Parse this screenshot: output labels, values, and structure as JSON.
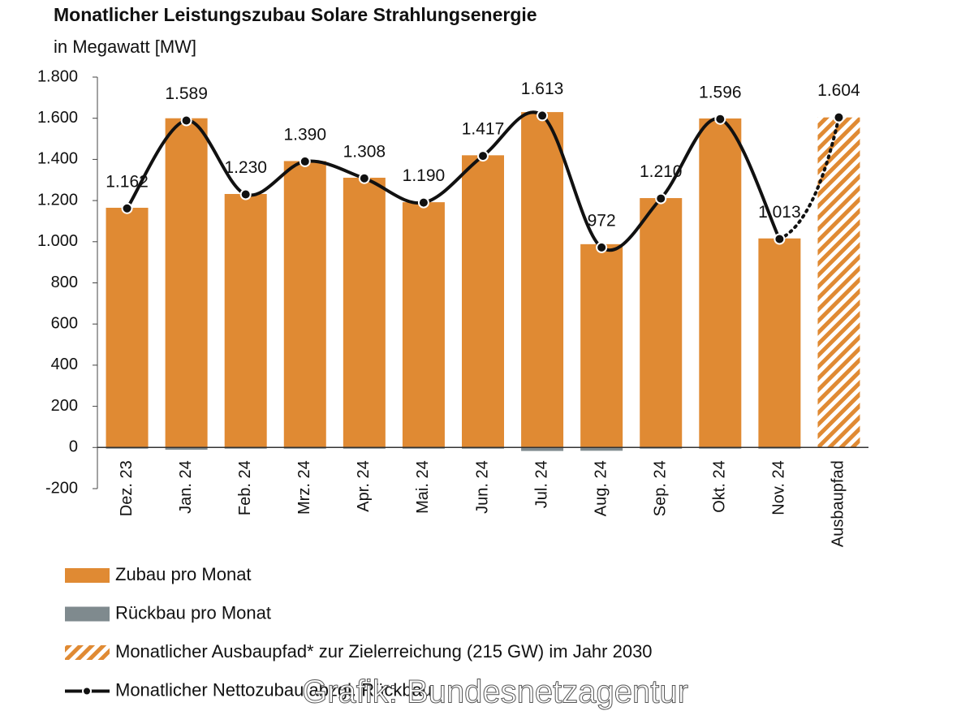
{
  "chart_data": {
    "type": "bar",
    "title": "Monatlicher Leistungszubau Solare Strahlungsenergie",
    "subtitle": "in Megawatt [MW]",
    "note": "Grafik: Bundesnetzagentur",
    "categories": [
      "Dez. 23",
      "Jan. 24",
      "Feb. 24",
      "Mrz. 24",
      "Apr. 24",
      "Mai. 24",
      "Jun. 24",
      "Jul. 24",
      "Aug. 24",
      "Sep. 24",
      "Okt. 24",
      "Nov. 24",
      "Ausbaupfad"
    ],
    "series": [
      {
        "name": "Zubau pro Monat",
        "kind": "bar",
        "color": "#e08a33",
        "values": [
          1165,
          1600,
          1232,
          1392,
          1311,
          1192,
          1420,
          1630,
          988,
          1212,
          1599,
          1016,
          null
        ]
      },
      {
        "name": "Rückbau pro Monat",
        "kind": "bar",
        "color": "#7f8a8e",
        "values": [
          -3,
          -11,
          -2,
          -2,
          -3,
          -2,
          -3,
          -17,
          -16,
          -2,
          -3,
          -3,
          null
        ]
      },
      {
        "name": "Monatlicher Ausbaupfad* zur Zielerreichung (215 GW) im Jahr 2030",
        "kind": "hatched-bar",
        "color": "#e08a33",
        "values": [
          null,
          null,
          null,
          null,
          null,
          null,
          null,
          null,
          null,
          null,
          null,
          null,
          1604
        ],
        "value_labels": [
          null,
          null,
          null,
          null,
          null,
          null,
          null,
          null,
          null,
          null,
          null,
          null,
          "1.604"
        ]
      },
      {
        "name": "Monatlicher Nettozubau abzgl. Rückbau",
        "kind": "line",
        "color": "#111111",
        "values": [
          1162,
          1589,
          1230,
          1390,
          1308,
          1190,
          1417,
          1613,
          972,
          1210,
          1596,
          1013,
          null
        ],
        "value_labels": [
          "1.162",
          "1.589",
          "1.230",
          "1.390",
          "1.308",
          "1.190",
          "1.417",
          "1.613",
          "972",
          "1.210",
          "1.596",
          "1.013",
          null
        ]
      }
    ],
    "ylim": [
      -200,
      1800
    ],
    "yticks": [
      -200,
      0,
      200,
      400,
      600,
      800,
      {
        "value": 1000,
        "label": "1.000"
      },
      {
        "value": 1200,
        "label": "1.200"
      },
      {
        "value": 1400,
        "label": "1.400"
      },
      {
        "value": 1600,
        "label": "1.600"
      },
      {
        "value": 1800,
        "label": "1.800"
      }
    ],
    "grid": false
  }
}
